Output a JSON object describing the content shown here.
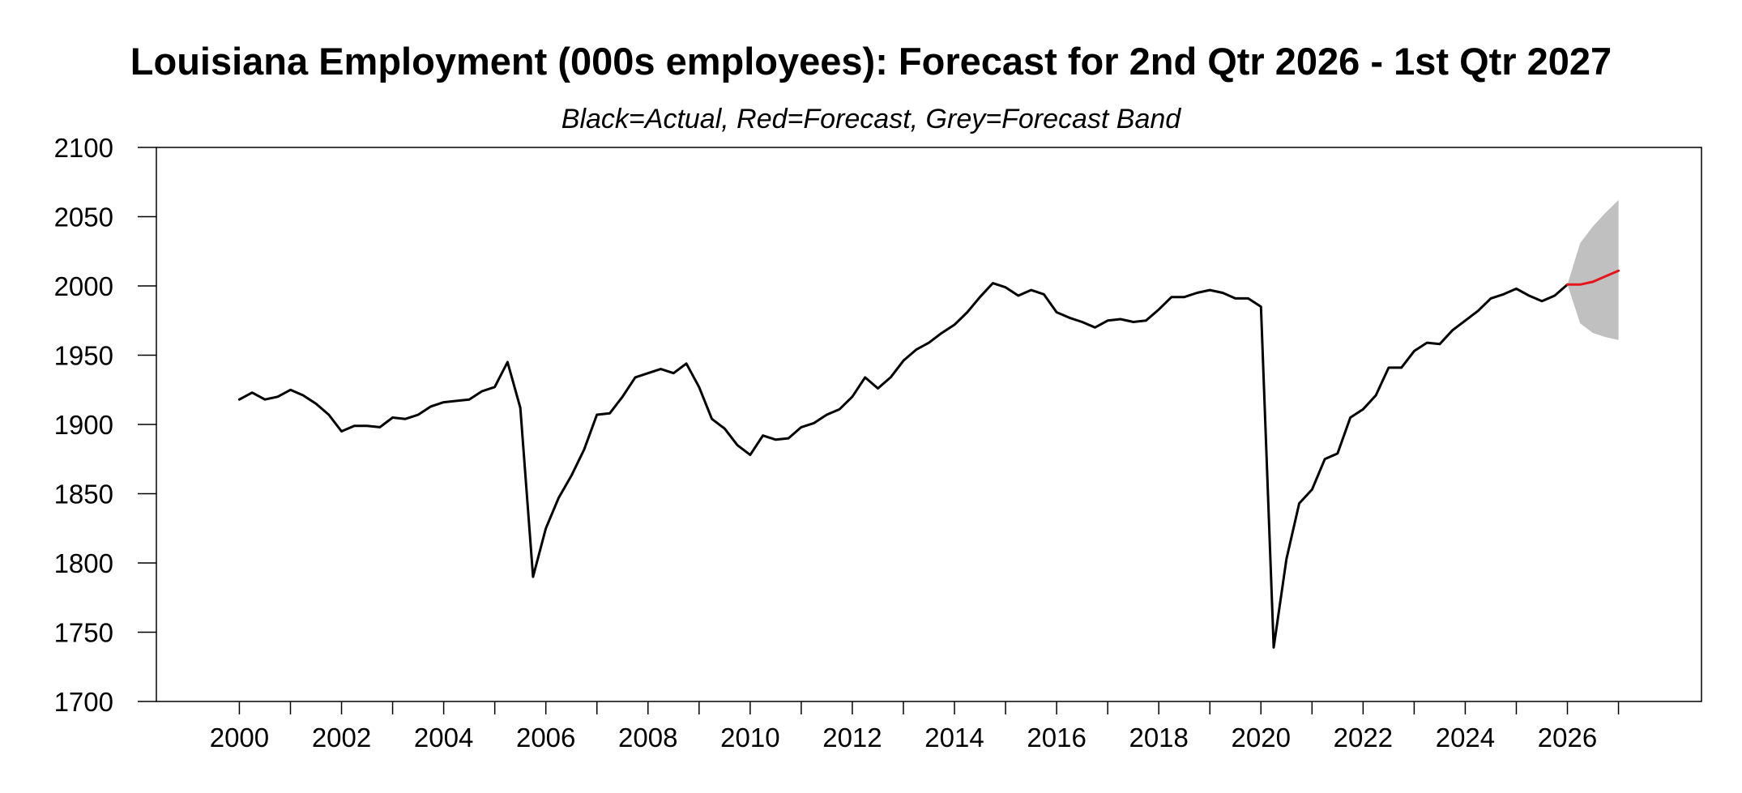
{
  "chart_data": {
    "type": "line",
    "title": "Louisiana Employment (000s employees): Forecast for 2nd Qtr 2026 - 1st Qtr 2027",
    "subtitle": "Black=Actual, Red=Forecast, Grey=Forecast Band",
    "ylim": [
      1700,
      2100
    ],
    "yticks": [
      2100,
      2050,
      2000,
      1950,
      1900,
      1850,
      1800,
      1750,
      1700
    ],
    "xlim": [
      1998.375,
      2028.625
    ],
    "xticks": [
      "2000",
      "2002",
      "2004",
      "2006",
      "2008",
      "2010",
      "2012",
      "2014",
      "2016",
      "2018",
      "2020",
      "2022",
      "2024",
      "2026"
    ],
    "grid": false,
    "colors": {
      "actual": "#000000",
      "forecast": "#e8141b",
      "band": "#c0c0c0"
    },
    "series": [
      {
        "x_start": 2000.0,
        "x_step": 0.25,
        "values": [
          1918,
          1923,
          1918,
          1920,
          1925,
          1921,
          1915,
          1907,
          1895,
          1899,
          1899,
          1898,
          1905,
          1904,
          1907,
          1913,
          1916,
          1917,
          1918,
          1924,
          1927,
          1945,
          1912,
          1790,
          1825,
          1847,
          1863,
          1882,
          1907,
          1908,
          1920,
          1934,
          1937,
          1940,
          1937,
          1944,
          1927,
          1904,
          1897,
          1885,
          1878,
          1892,
          1889,
          1890,
          1898,
          1901,
          1907,
          1911,
          1920,
          1934,
          1926,
          1934,
          1946,
          1954,
          1959,
          1966,
          1972,
          1981,
          1992,
          2002,
          1999,
          1993,
          1997,
          1994,
          1981,
          1977,
          1974,
          1970,
          1975,
          1976,
          1974,
          1975,
          1983,
          1992,
          1992,
          1995,
          1997,
          1995,
          1991,
          1991,
          1985,
          1739,
          1803,
          1843,
          1853,
          1875,
          1879,
          1905,
          1911,
          1921,
          1941,
          1941,
          1953,
          1959,
          1958,
          1968,
          1975,
          1982,
          1991,
          1994,
          1998,
          1993,
          1989,
          1993,
          2001
        ]
      },
      {
        "x_start": 2026.0,
        "x_step": 0.25,
        "values": [
          2001,
          2001,
          2003,
          2007,
          2011
        ]
      }
    ],
    "band": {
      "x_start": 2026.0,
      "x_step": 0.25,
      "upper": [
        2001,
        2031,
        2043,
        2053,
        2062
      ],
      "lower": [
        2001,
        1973,
        1966,
        1963,
        1961
      ]
    }
  }
}
